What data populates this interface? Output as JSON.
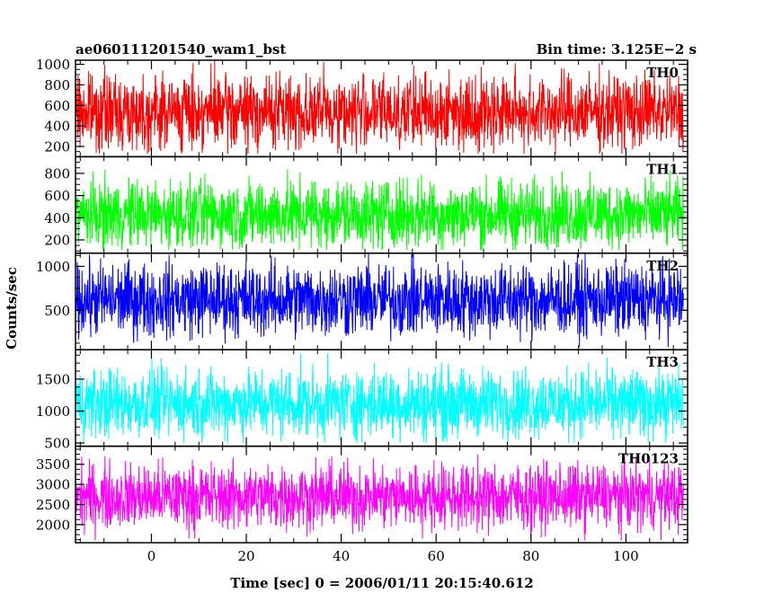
{
  "chart_data": {
    "type": "line",
    "title": "ae060111201540_wam1_bst",
    "subtitle": "Bin time: 3.125E−2 s",
    "xlabel": "Time [sec] 0 = 2006/01/11 20:15:40.612",
    "ylabel": "Counts/sec",
    "xlim": [
      -16,
      113
    ],
    "x_ticks": [
      "0",
      "20",
      "40",
      "60",
      "80",
      "100"
    ],
    "x_tick_values": [
      0,
      20,
      40,
      60,
      80,
      100
    ],
    "data_x_range": [
      -15.9,
      112.1
    ],
    "grid": false,
    "panels": [
      {
        "name": "TH0",
        "color": "#ff0000",
        "ylim": [
          100,
          1040
        ],
        "yticks": [
          200,
          400,
          600,
          800,
          1000
        ],
        "ytick_labels": [
          "200",
          "400",
          "600",
          "800",
          "1000"
        ],
        "mean": 540,
        "spread": 200,
        "min": 130,
        "max": 1040
      },
      {
        "name": "TH1",
        "color": "#00ff00",
        "ylim": [
          80,
          950
        ],
        "yticks": [
          200,
          400,
          600,
          800
        ],
        "ytick_labels": [
          "200",
          "400",
          "600",
          "800"
        ],
        "mean": 430,
        "spread": 170,
        "min": 110,
        "max": 950
      },
      {
        "name": "TH2",
        "color": "#0000ff",
        "ylim": [
          50,
          1150
        ],
        "yticks": [
          500,
          1000
        ],
        "ytick_labels": [
          "500",
          "1000"
        ],
        "mean": 620,
        "spread": 230,
        "min": 80,
        "max": 1150
      },
      {
        "name": "TH3",
        "color": "#00ffff",
        "ylim": [
          450,
          1960
        ],
        "yticks": [
          500,
          1000,
          1500
        ],
        "ytick_labels": [
          "500",
          "1000",
          "1500"
        ],
        "mean": 1120,
        "spread": 300,
        "min": 500,
        "max": 1960
      },
      {
        "name": "TH0123",
        "color": "#ff00ff",
        "ylim": [
          1550,
          3950
        ],
        "yticks": [
          2000,
          2500,
          3000,
          3500
        ],
        "ytick_labels": [
          "2000",
          "2500",
          "3000",
          "3500"
        ],
        "mean": 2700,
        "spread": 450,
        "min": 1600,
        "max": 3900
      }
    ]
  }
}
